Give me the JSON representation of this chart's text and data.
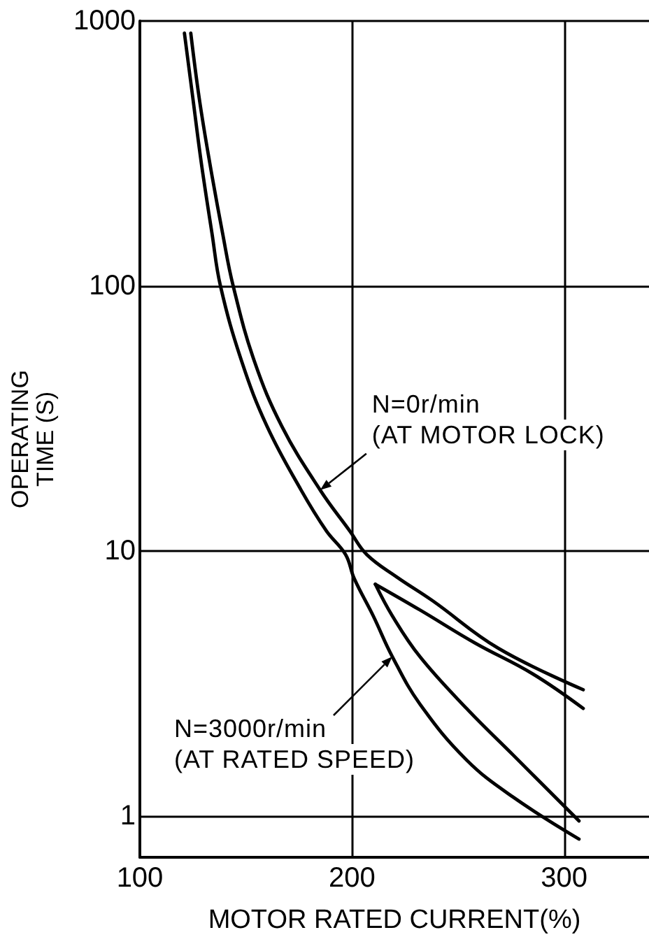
{
  "chart_data": {
    "type": "line",
    "xlabel": "MOTOR RATED CURRENT(%)",
    "ylabel": "OPERATING\nTIME (S)",
    "xlim": [
      100,
      340
    ],
    "xticks": [
      100,
      200,
      300
    ],
    "ylim": [
      0.7,
      1000
    ],
    "yticks": [
      1,
      10,
      100,
      1000
    ],
    "log": "y",
    "grid": true,
    "marker": "none",
    "line_style": "solid",
    "series": [
      {
        "color": "#000000",
        "x": [
          121,
          125,
          129,
          134,
          138,
          148,
          160,
          176,
          188,
          197,
          201,
          210,
          219,
          232,
          254,
          276,
          307
        ],
        "values": [
          900,
          510,
          290,
          158,
          100,
          52,
          29.5,
          17,
          11.9,
          9.7,
          7.9,
          5.7,
          4.0,
          2.65,
          1.63,
          1.18,
          0.82
        ]
      },
      {
        "color": "#000000",
        "x": [
          124,
          128,
          133,
          139,
          144,
          154,
          167,
          185,
          199,
          207,
          221,
          238,
          269,
          309
        ],
        "values": [
          900,
          510,
          290,
          158,
          100,
          52,
          29.5,
          17,
          11.9,
          9.7,
          8.0,
          6.5,
          4.3,
          3.0
        ]
      },
      {
        "color": "#000000",
        "x": [
          211,
          232,
          258,
          285,
          309
        ],
        "values": [
          7.5,
          6.0,
          4.5,
          3.45,
          2.55
        ]
      },
      {
        "color": "#000000",
        "x": [
          211,
          219,
          232,
          254,
          276,
          307
        ],
        "values": [
          7.5,
          5.7,
          4.0,
          2.55,
          1.7,
          0.96
        ]
      }
    ],
    "annotations": [
      {
        "text": "N=0r/min\n(AT MOTOR LOCK)",
        "x": 185,
        "y": 17
      },
      {
        "text": "N=3000r/min\n(AT RATED SPEED)",
        "x": 219,
        "y": 4.0
      }
    ]
  }
}
